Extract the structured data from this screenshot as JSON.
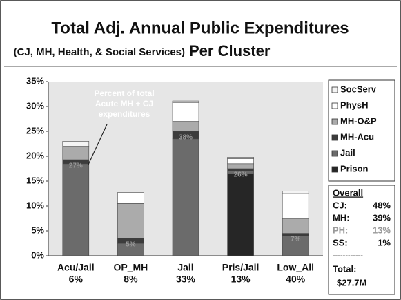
{
  "chart_data": {
    "type": "stacked_bar",
    "title": "Total Adj. Annual Public Expenditures",
    "subtitle": "(CJ, MH, Health, & Social Services)",
    "subtitle_emphasis": "Per Cluster",
    "categories": [
      "Acu/Jail",
      "OP_MH",
      "Jail",
      "Pris/Jail",
      "Low_All"
    ],
    "category_shares": [
      "6%",
      "8%",
      "33%",
      "13%",
      "40%"
    ],
    "series": [
      {
        "name": "Prison",
        "color": "#262626",
        "values": [
          0,
          0,
          0,
          16.5,
          0
        ]
      },
      {
        "name": "Jail",
        "color": "#6b6b6b",
        "values": [
          18.5,
          2.5,
          23.5,
          0.5,
          4
        ]
      },
      {
        "name": "MH-Acu",
        "color": "#3c3c3c",
        "values": [
          0.8,
          1,
          1.5,
          0.5,
          0.5
        ]
      },
      {
        "name": "MH-O&P",
        "color": "#ababab",
        "values": [
          2.7,
          7,
          2,
          1,
          3
        ]
      },
      {
        "name": "PhysH",
        "color": "#ffffff",
        "values": [
          0,
          2.2,
          3.8,
          1,
          5
        ]
      },
      {
        "name": "SocServ",
        "color": "#f4f4f4",
        "values": [
          1,
          0,
          0.3,
          0.3,
          0.5
        ]
      }
    ],
    "bar_labels": [
      "27%",
      "5%",
      "38%",
      "26%",
      "7%"
    ],
    "annotation": [
      "Percent of total",
      "Acute MH + CJ",
      "expenditures"
    ],
    "ylim": [
      0,
      35
    ],
    "yticks": [
      {
        "value": 0,
        "label": "0%"
      },
      {
        "value": 5,
        "label": "5%"
      },
      {
        "value": 10,
        "label": "10%"
      },
      {
        "value": 15,
        "label": "15%"
      },
      {
        "value": 20,
        "label": "20%"
      },
      {
        "value": 25,
        "label": "25%"
      },
      {
        "value": 30,
        "label": "30%"
      },
      {
        "value": 35,
        "label": "35%"
      }
    ],
    "overall": {
      "title": "Overall",
      "rows": [
        {
          "label": "CJ:",
          "value": "48%"
        },
        {
          "label": "MH:",
          "value": "39%"
        },
        {
          "label": "PH:",
          "value": "13%"
        },
        {
          "label": "SS:",
          "value": "1%"
        }
      ],
      "separator": "------------",
      "total_label": "Total:",
      "total_value": "$27.7M"
    }
  }
}
